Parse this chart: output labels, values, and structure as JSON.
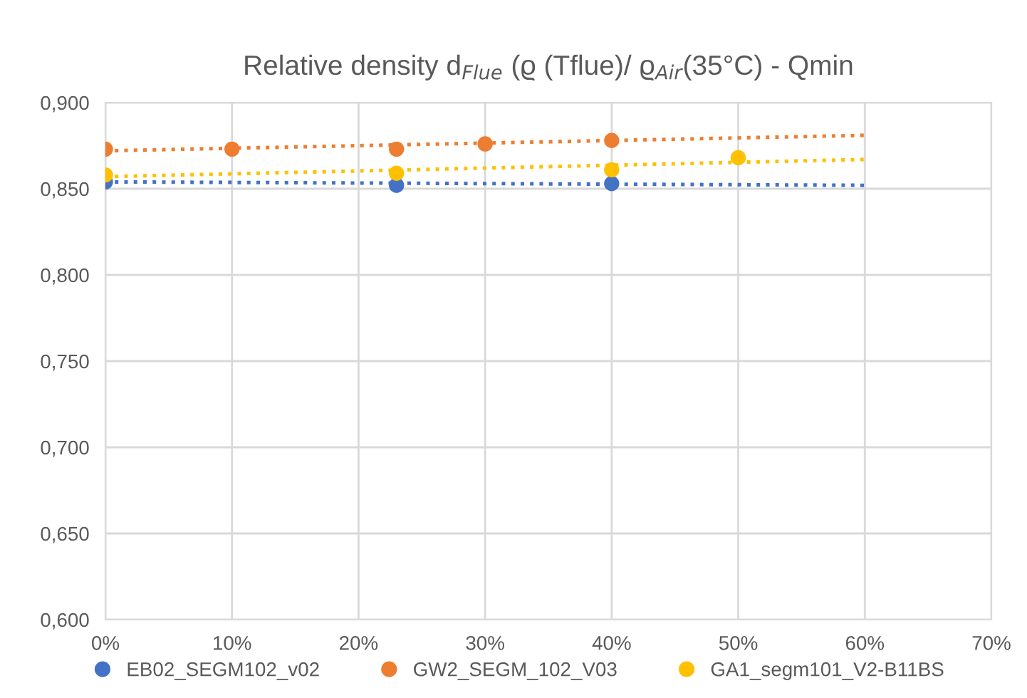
{
  "chart_data": {
    "type": "scatter",
    "title": "Relative density d$_{Flue}$ (ϱ (Tflue)/ ϱ$_{Air}$(35°C) - Qmin",
    "series": [
      {
        "name": "EB02_SEGM102_v02",
        "color": "#4472c4",
        "x": [
          0,
          23,
          40
        ],
        "values": [
          0.854,
          0.852,
          0.853
        ],
        "marker": "circle"
      },
      {
        "name": "GW2_SEGM_102_V03",
        "color": "#ed7d31",
        "x": [
          0,
          10,
          23,
          30,
          40
        ],
        "values": [
          0.873,
          0.873,
          0.873,
          0.876,
          0.878
        ],
        "marker": "circle"
      },
      {
        "name": "GA1_segm101_V2-B11BS",
        "color": "#ffc000",
        "x": [
          0,
          23,
          40,
          50
        ],
        "values": [
          0.858,
          0.859,
          0.861,
          0.868
        ],
        "marker": "circle"
      },
      {
        "type": "line",
        "color": "#4472c4",
        "x": [
          0,
          60
        ],
        "values": [
          0.854,
          0.852
        ],
        "line_style": "dotted",
        "marker": "none"
      },
      {
        "type": "line",
        "color": "#ed7d31",
        "x": [
          0,
          60
        ],
        "values": [
          0.872,
          0.881
        ],
        "line_style": "dotted",
        "marker": "none"
      },
      {
        "type": "line",
        "color": "#ffc000",
        "x": [
          0,
          60
        ],
        "values": [
          0.857,
          0.867
        ],
        "line_style": "dotted",
        "marker": "none"
      }
    ],
    "xlim": [
      0,
      70
    ],
    "xticks": [
      {
        "value": 0,
        "label": "0%"
      },
      {
        "value": 10,
        "label": "10%"
      },
      {
        "value": 20,
        "label": "20%"
      },
      {
        "value": 30,
        "label": "30%"
      },
      {
        "value": 40,
        "label": "40%"
      },
      {
        "value": 50,
        "label": "50%"
      },
      {
        "value": 60,
        "label": "60%"
      },
      {
        "value": 70,
        "label": "70%"
      }
    ],
    "ylim": [
      0.6,
      0.9
    ],
    "yticks": [
      {
        "value": 0.6,
        "label": "0,600"
      },
      {
        "value": 0.65,
        "label": "0,650"
      },
      {
        "value": 0.7,
        "label": "0,700"
      },
      {
        "value": 0.75,
        "label": "0,750"
      },
      {
        "value": 0.8,
        "label": "0,800"
      },
      {
        "value": 0.85,
        "label": "0,850"
      },
      {
        "value": 0.9,
        "label": "0,900"
      }
    ],
    "grid": true,
    "legend": "bottom"
  }
}
